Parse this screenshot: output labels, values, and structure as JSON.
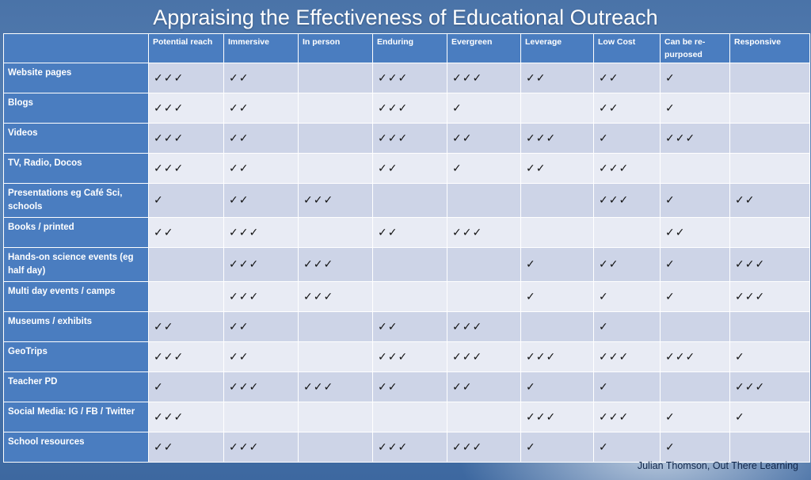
{
  "title": "Appraising the Effectiveness of Educational Outreach",
  "columns": [
    "Potential reach",
    "Immersive",
    "In person",
    "Enduring",
    "Evergreen",
    "Leverage",
    "Low Cost",
    "Can be re-purposed",
    "Responsive"
  ],
  "rows": [
    {
      "label": "Website pages",
      "cells": [
        "✓✓✓",
        "✓✓",
        "",
        "✓✓✓",
        "✓✓✓",
        "✓✓",
        "✓✓",
        "✓",
        ""
      ]
    },
    {
      "label": "Blogs",
      "cells": [
        "✓✓✓",
        "✓✓",
        "",
        "✓✓✓",
        "✓",
        "",
        "✓✓",
        "✓",
        ""
      ]
    },
    {
      "label": "Videos",
      "cells": [
        "✓✓✓",
        "✓✓",
        "",
        "✓✓✓",
        "✓✓",
        "✓✓✓",
        "✓",
        "✓✓✓",
        ""
      ]
    },
    {
      "label": "TV, Radio, Docos",
      "cells": [
        "✓✓✓",
        "✓✓",
        "",
        "✓✓",
        "✓",
        "✓✓",
        "✓✓✓",
        "",
        ""
      ]
    },
    {
      "label": "Presentations eg Café Sci, schools",
      "cells": [
        "✓",
        "✓✓",
        "✓✓✓",
        "",
        "",
        "",
        "✓✓✓",
        "✓",
        "✓✓"
      ]
    },
    {
      "label": "Books / printed",
      "cells": [
        "✓✓",
        "✓✓✓",
        "",
        "✓✓",
        "✓✓✓",
        "",
        "",
        "✓✓",
        ""
      ]
    },
    {
      "label": "Hands-on science events (eg half day)",
      "cells": [
        "",
        "✓✓✓",
        "✓✓✓",
        "",
        "",
        "✓",
        "✓✓",
        "✓",
        "✓✓✓"
      ]
    },
    {
      "label": "Multi day events / camps",
      "cells": [
        "",
        "✓✓✓",
        "✓✓✓",
        "",
        "",
        "✓",
        "✓",
        "✓",
        "✓✓✓"
      ]
    },
    {
      "label": "Museums / exhibits",
      "cells": [
        "✓✓",
        "✓✓",
        "",
        "✓✓",
        "✓✓✓",
        "",
        "✓",
        "",
        ""
      ]
    },
    {
      "label": "GeoTrips",
      "cells": [
        "✓✓✓",
        "✓✓",
        "",
        "✓✓✓",
        "✓✓✓",
        "✓✓✓",
        "✓✓✓",
        "✓✓✓",
        "✓"
      ]
    },
    {
      "label": "Teacher PD",
      "cells": [
        "✓",
        "✓✓✓",
        "✓✓✓",
        "✓✓",
        "✓✓",
        "✓",
        "✓",
        "",
        "✓✓✓"
      ]
    },
    {
      "label": "Social Media: IG / FB / Twitter",
      "cells": [
        "✓✓✓",
        "",
        "",
        "",
        "",
        "✓✓✓",
        "✓✓✓",
        "✓",
        "✓"
      ]
    },
    {
      "label": "School resources",
      "cells": [
        "✓✓",
        "✓✓✓",
        "",
        "✓✓✓",
        "✓✓✓",
        "✓",
        "✓",
        "✓",
        ""
      ]
    }
  ],
  "footer": "Julian Thomson, Out There Learning",
  "colors": {
    "header_blue": "#4a7dc0",
    "cell_dark": "#cdd4e7",
    "cell_light": "#e8ebf4",
    "background": "#4a73a8"
  }
}
